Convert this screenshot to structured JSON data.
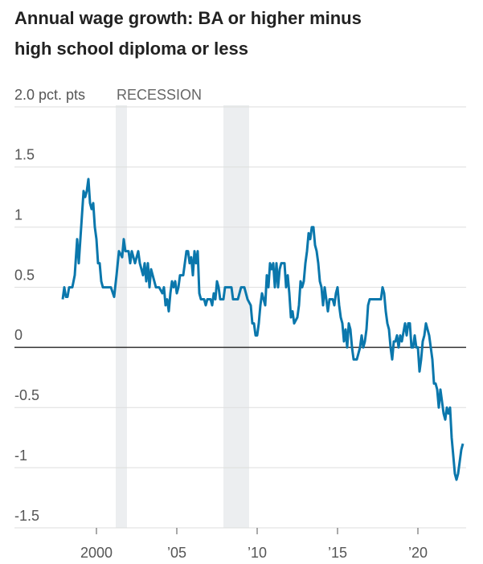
{
  "chart_data": {
    "type": "line",
    "title": [
      "Annual wage growth: BA or higher minus",
      "high school diploma or less"
    ],
    "recession_label": "RECESSION",
    "recessions": [
      [
        2001.2,
        2001.9
      ],
      [
        2007.9,
        2009.5
      ]
    ],
    "xlim": [
      1994.9,
      2023
    ],
    "ylim": [
      -1.5,
      2.0
    ],
    "xticks": [
      2000,
      {
        "value": 2005,
        "label": "’05"
      },
      {
        "value": 2010,
        "label": "’10"
      },
      {
        "value": 2015,
        "label": "’15"
      },
      {
        "value": 2020,
        "label": "’20"
      }
    ],
    "yticks": [
      -1.5,
      -1.0,
      -0.5,
      0,
      0.5,
      1.0,
      1.5,
      {
        "value": 2.0,
        "label": "2.0 pct. pts"
      }
    ],
    "grid": true,
    "series": [
      {
        "color": "#0a77ac",
        "x": [
          1997.9,
          1998.0,
          1998.1,
          1998.2,
          1998.3,
          1998.5,
          1998.65,
          1998.8,
          1998.9,
          1999.0,
          1999.1,
          1999.2,
          1999.3,
          1999.4,
          1999.5,
          1999.6,
          1999.7,
          1999.8,
          1999.9,
          2000.0,
          2000.1,
          2000.2,
          2000.3,
          2000.4,
          2000.7,
          2000.9,
          2001.1,
          2001.25,
          2001.4,
          2001.6,
          2001.7,
          2001.8,
          2002.0,
          2002.1,
          2002.2,
          2002.4,
          2002.6,
          2002.7,
          2002.9,
          2003.0,
          2003.1,
          2003.2,
          2003.3,
          2003.4,
          2003.5,
          2003.7,
          2003.9,
          2004.1,
          2004.2,
          2004.3,
          2004.4,
          2004.5,
          2004.6,
          2004.7,
          2004.8,
          2004.9,
          2005.0,
          2005.1,
          2005.2,
          2005.4,
          2005.5,
          2005.6,
          2005.7,
          2005.8,
          2005.9,
          2006.0,
          2006.1,
          2006.2,
          2006.3,
          2006.4,
          2006.5,
          2006.7,
          2006.8,
          2006.9,
          2007.1,
          2007.2,
          2007.3,
          2007.4,
          2007.5,
          2007.6,
          2007.7,
          2007.9,
          2008.0,
          2008.2,
          2008.4,
          2008.5,
          2008.8,
          2009.0,
          2009.2,
          2009.4,
          2009.6,
          2009.7,
          2009.8,
          2009.9,
          2010.0,
          2010.1,
          2010.2,
          2010.3,
          2010.4,
          2010.5,
          2010.6,
          2010.7,
          2010.8,
          2010.9,
          2011.0,
          2011.1,
          2011.2,
          2011.3,
          2011.4,
          2011.5,
          2011.7,
          2011.8,
          2011.9,
          2012.0,
          2012.1,
          2012.2,
          2012.3,
          2012.5,
          2012.6,
          2012.7,
          2012.8,
          2012.9,
          2013.0,
          2013.1,
          2013.2,
          2013.3,
          2013.4,
          2013.5,
          2013.6,
          2013.7,
          2013.8,
          2013.9,
          2014.0,
          2014.1,
          2014.2,
          2014.3,
          2014.4,
          2014.5,
          2014.7,
          2014.8,
          2014.9,
          2015.0,
          2015.1,
          2015.2,
          2015.3,
          2015.4,
          2015.5,
          2015.6,
          2015.7,
          2015.8,
          2015.9,
          2016.0,
          2016.2,
          2016.4,
          2016.5,
          2016.6,
          2016.7,
          2016.8,
          2016.9,
          2017.0,
          2017.2,
          2017.5,
          2017.7,
          2017.8,
          2017.9,
          2018.0,
          2018.1,
          2018.2,
          2018.3,
          2018.4,
          2018.5,
          2018.6,
          2018.7,
          2018.8,
          2018.9,
          2019.0,
          2019.2,
          2019.3,
          2019.4,
          2019.5,
          2019.6,
          2019.7,
          2019.8,
          2019.9,
          2020.0,
          2020.1,
          2020.2,
          2020.3,
          2020.4,
          2020.5,
          2020.6,
          2020.7,
          2020.8,
          2020.9,
          2021.0,
          2021.1,
          2021.2,
          2021.3,
          2021.4,
          2021.5,
          2021.6,
          2021.7,
          2021.8,
          2021.9,
          2022.0,
          2022.1,
          2022.2,
          2022.3,
          2022.4,
          2022.5,
          2022.6,
          2022.7,
          2022.8
        ],
        "values": [
          0.4,
          0.5,
          0.42,
          0.42,
          0.5,
          0.5,
          0.6,
          0.9,
          0.7,
          0.9,
          1.1,
          1.3,
          1.25,
          1.3,
          1.4,
          1.2,
          1.15,
          1.2,
          1.0,
          0.9,
          0.7,
          0.7,
          0.55,
          0.5,
          0.5,
          0.5,
          0.42,
          0.6,
          0.8,
          0.75,
          0.9,
          0.8,
          0.8,
          0.7,
          0.8,
          0.7,
          0.8,
          0.7,
          0.6,
          0.7,
          0.55,
          0.7,
          0.5,
          0.65,
          0.6,
          0.5,
          0.5,
          0.45,
          0.5,
          0.35,
          0.4,
          0.3,
          0.45,
          0.55,
          0.5,
          0.55,
          0.45,
          0.5,
          0.6,
          0.6,
          0.7,
          0.8,
          0.8,
          0.7,
          0.75,
          0.6,
          0.8,
          0.7,
          0.8,
          0.45,
          0.4,
          0.4,
          0.35,
          0.4,
          0.4,
          0.35,
          0.45,
          0.4,
          0.55,
          0.5,
          0.4,
          0.4,
          0.5,
          0.5,
          0.5,
          0.4,
          0.4,
          0.5,
          0.5,
          0.4,
          0.35,
          0.2,
          0.2,
          0.1,
          0.1,
          0.2,
          0.35,
          0.45,
          0.4,
          0.35,
          0.6,
          0.5,
          0.7,
          0.65,
          0.7,
          0.5,
          0.7,
          0.5,
          0.65,
          0.7,
          0.7,
          0.5,
          0.6,
          0.45,
          0.25,
          0.3,
          0.2,
          0.25,
          0.35,
          0.55,
          0.5,
          0.55,
          0.7,
          0.8,
          0.95,
          0.9,
          1.0,
          1.0,
          0.85,
          0.8,
          0.7,
          0.55,
          0.5,
          0.35,
          0.5,
          0.4,
          0.3,
          0.4,
          0.4,
          0.35,
          0.45,
          0.5,
          0.35,
          0.25,
          0.2,
          0.05,
          0.15,
          0.0,
          0.2,
          0.15,
          0.0,
          -0.1,
          -0.1,
          0.0,
          0.1,
          0.0,
          0.05,
          0.15,
          0.35,
          0.4,
          0.4,
          0.4,
          0.4,
          0.5,
          0.45,
          0.3,
          0.2,
          0.15,
          0.0,
          -0.1,
          0.05,
          0.05,
          0.1,
          0.0,
          0.1,
          0.05,
          0.2,
          0.1,
          0.2,
          0.2,
          0.0,
          0.0,
          0.1,
          0.0,
          0.0,
          -0.2,
          -0.1,
          0.05,
          0.1,
          0.2,
          0.15,
          0.1,
          0.0,
          -0.1,
          -0.3,
          -0.3,
          -0.35,
          -0.5,
          -0.35,
          -0.45,
          -0.55,
          -0.6,
          -0.5,
          -0.55,
          -0.5,
          -0.75,
          -0.9,
          -1.05,
          -1.1,
          -1.05,
          -0.95,
          -0.85,
          -0.8
        ]
      }
    ]
  }
}
